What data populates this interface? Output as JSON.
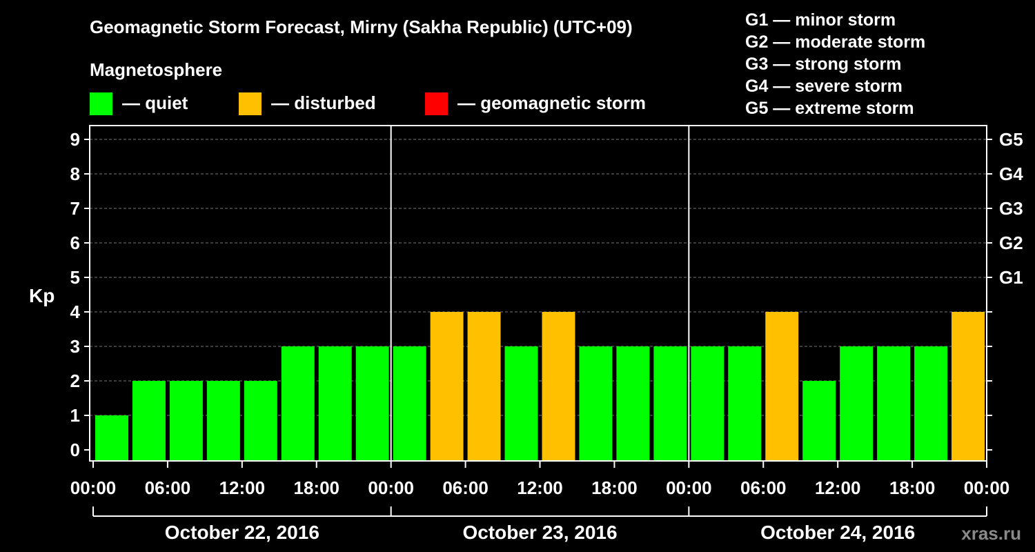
{
  "chart_data": {
    "type": "bar",
    "title": "Geomagnetic Storm Forecast, Mirny (Sakha Republic) (UTC+09)",
    "legend_title": "Magnetosphere",
    "legend": [
      {
        "key": "quiet",
        "label": "— quiet",
        "color": "#00ff00"
      },
      {
        "key": "disturbed",
        "label": "— disturbed",
        "color": "#ffc000"
      },
      {
        "key": "storm",
        "label": "— geomagnetic storm",
        "color": "#ff0000"
      }
    ],
    "storm_scale": [
      "G1 — minor storm",
      "G2 — moderate storm",
      "G3 — strong storm",
      "G4 — severe storm",
      "G5 — extreme storm"
    ],
    "ylabel": "Kp",
    "ylim": [
      0,
      9
    ],
    "y_ticks": [
      "0",
      "1",
      "2",
      "3",
      "4",
      "5",
      "6",
      "7",
      "8",
      "9"
    ],
    "right_ticks": [
      {
        "value": 5,
        "label": "G1"
      },
      {
        "value": 6,
        "label": "G2"
      },
      {
        "value": 7,
        "label": "G3"
      },
      {
        "value": 8,
        "label": "G4"
      },
      {
        "value": 9,
        "label": "G5"
      }
    ],
    "grid": true,
    "interval_hours": 3,
    "x_ticks": [
      "00:00",
      "06:00",
      "12:00",
      "18:00",
      "00:00",
      "06:00",
      "12:00",
      "18:00",
      "00:00",
      "06:00",
      "12:00",
      "18:00",
      "00:00"
    ],
    "days": [
      "October 22, 2016",
      "October 23, 2016",
      "October 24, 2016"
    ],
    "values": [
      1,
      2,
      2,
      2,
      2,
      3,
      3,
      3,
      3,
      4,
      4,
      3,
      4,
      3,
      3,
      3,
      3,
      3,
      4,
      2,
      3,
      3,
      3,
      4
    ],
    "status": [
      "quiet",
      "quiet",
      "quiet",
      "quiet",
      "quiet",
      "quiet",
      "quiet",
      "quiet",
      "quiet",
      "disturbed",
      "disturbed",
      "quiet",
      "disturbed",
      "quiet",
      "quiet",
      "quiet",
      "quiet",
      "quiet",
      "disturbed",
      "quiet",
      "quiet",
      "quiet",
      "quiet",
      "disturbed"
    ]
  },
  "watermark": "xras.ru"
}
